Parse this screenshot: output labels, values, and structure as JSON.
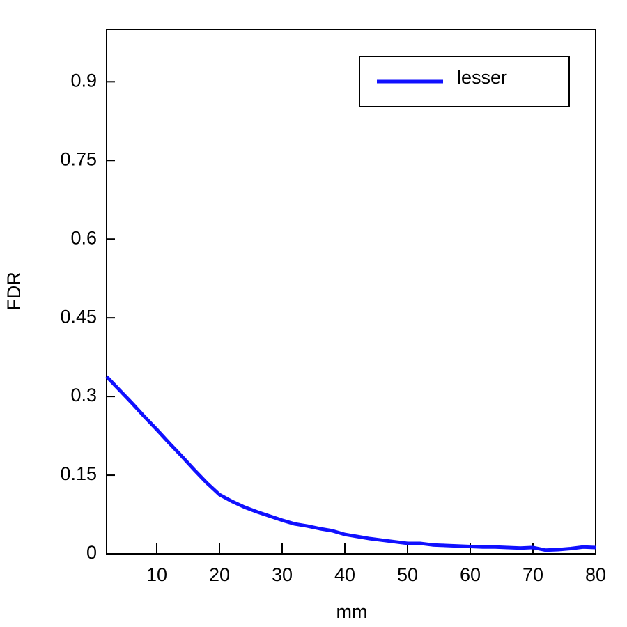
{
  "chart_data": {
    "type": "line",
    "x_label": "mm",
    "y_label": "FDR",
    "x": [
      2,
      4,
      6,
      8,
      10,
      12,
      14,
      16,
      18,
      20,
      22,
      24,
      26,
      28,
      30,
      32,
      34,
      36,
      38,
      40,
      42,
      44,
      46,
      48,
      50,
      52,
      54,
      56,
      58,
      60,
      62,
      64,
      66,
      68,
      70,
      72,
      74,
      76,
      78,
      80
    ],
    "series": [
      {
        "name": "lesser",
        "color": "#1010ff",
        "values": [
          0.338,
          0.313,
          0.288,
          0.262,
          0.237,
          0.211,
          0.186,
          0.16,
          0.135,
          0.113,
          0.1,
          0.089,
          0.08,
          0.072,
          0.064,
          0.057,
          0.053,
          0.048,
          0.044,
          0.037,
          0.033,
          0.029,
          0.026,
          0.023,
          0.02,
          0.02,
          0.017,
          0.016,
          0.015,
          0.014,
          0.013,
          0.013,
          0.012,
          0.011,
          0.012,
          0.007,
          0.008,
          0.01,
          0.013,
          0.012
        ]
      }
    ],
    "xlim": [
      2,
      80
    ],
    "ylim": [
      0,
      1.0
    ],
    "xticks": [
      10,
      20,
      30,
      40,
      50,
      60,
      70,
      80
    ],
    "yticks": [
      0,
      0.15,
      0.3,
      0.45,
      0.6,
      0.75,
      0.9
    ],
    "legend": "upper-right"
  }
}
